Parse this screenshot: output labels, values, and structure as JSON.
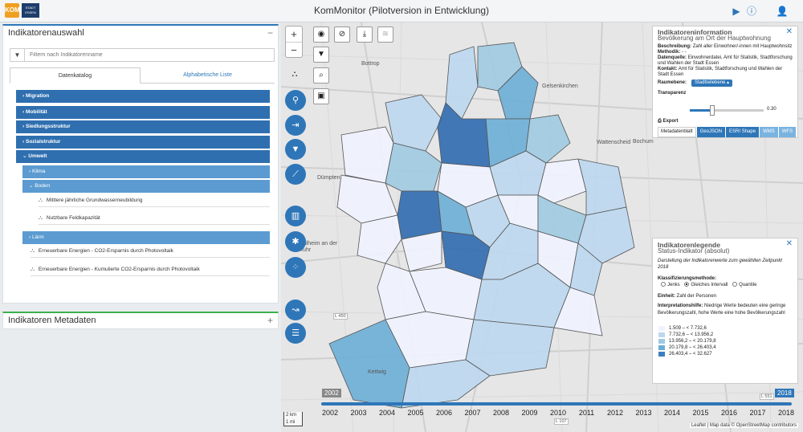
{
  "header": {
    "logo_left": "KOM",
    "logo_right": "STADT ESSEN",
    "title": "KomMonitor (Pilotversion in Entwicklung)",
    "icons": [
      "play-icon",
      "info-icon",
      "user-settings-icon"
    ]
  },
  "sidebar": {
    "title": "Indikatorenauswahl",
    "collapse_symbol": "−",
    "filter_placeholder": "Filtern nach Indikatorenname",
    "tabs": [
      {
        "label": "Datenkatalog"
      },
      {
        "label": "Alphabetische Liste"
      }
    ],
    "categories": [
      "Migration",
      "Mobilität",
      "Siedlungsstruktur",
      "Sozialstruktur",
      "Umwelt"
    ],
    "subcategories": [
      "Klima",
      "Boden",
      "Lärm"
    ],
    "indicators_boden": [
      "Mittlere jährliche Grundwasserneubildung",
      "Nutzbare Feldkapazität"
    ],
    "indicators_other": [
      "Erneuerbare Energien - CO2-Ersparnis durch Photovoltaik",
      "Erneuerbare Energien - Kumulierte CO2-Ersparnis durch Photovoltaik"
    ],
    "metadata_title": "Indikatoren Metadaten",
    "expand_symbol": "+"
  },
  "map": {
    "labels": [
      "Bottrop",
      "Gelsenkirchen",
      "Wattenscheid",
      "Bochum",
      "Dümpten",
      "Mülheim an der Ruhr",
      "Kettwig"
    ],
    "zoom_in": "+",
    "zoom_out": "−",
    "scale_top": "2 km",
    "scale_bottom": "1 mi",
    "road_labels": [
      "L 450",
      "L 551",
      "L 107"
    ]
  },
  "info": {
    "title": "Indikatoreninformation",
    "subtitle": "Bevölkerung am Ort der Hauptwohnung",
    "beschreibung_label": "Beschreibung:",
    "beschreibung": "Zahl aller Einwohner/-innen mit Hauptwohnsitz",
    "methodik_label": "Methodik:",
    "methodik": "- -",
    "datenquelle_label": "Datenquelle:",
    "datenquelle": "Einwohnerdatei, Amt für Statistik, Stadtforschung und Wahlen der Stadt Essen",
    "kontakt_label": "Kontakt:",
    "kontakt": "Amt für Statistik, Stadtforschung und Wahlen der Stadt Essen",
    "raumebene_label": "Raumebene:",
    "raumebene": "Stadtteilebene",
    "transparenz_label": "Transparenz",
    "transparenz_value": "0.30",
    "transparenz_fraction": 0.3,
    "export_label": "Export",
    "formats": [
      "Metadatenblatt",
      "GeoJSON",
      "ESRI Shape",
      "WMS",
      "WFS"
    ]
  },
  "legend": {
    "title": "Indikatorenlegende",
    "subtitle": "Status-Indikator (absolut)",
    "description": "Darstellung der Indikatorenwerte zum gewählten Zeitpunkt 2018",
    "method_label": "Klassifizierungsmethode:",
    "methods": [
      "Jenks",
      "Gleiches Intervall",
      "Quantile"
    ],
    "einheit_label": "Einheit:",
    "einheit": "Zahl der Personen",
    "interp_label": "Interpretationshilfe:",
    "interp": "Niedrige Werte bedeuten eine geringe Bevölkerungszahl, hohe Werte eine hohe Bevölkerungszahl",
    "classes": [
      {
        "label": "1.509 – < 7.732,6",
        "color": "#eff3ff"
      },
      {
        "label": "7.732,6 – < 13.956,2",
        "color": "#bdd7ee"
      },
      {
        "label": "13.956,2 – < 20.179,8",
        "color": "#9ecae1"
      },
      {
        "label": "20.179,8 – < 26.403,4",
        "color": "#6baed6"
      },
      {
        "label": "26.403,4 – < 32.627",
        "color": "#3c7fc0"
      }
    ]
  },
  "timeline": {
    "start_badge": "2002",
    "end_badge": "2018",
    "years": [
      "2002",
      "2003",
      "2004",
      "2005",
      "2006",
      "2007",
      "2008",
      "2009",
      "2010",
      "2011",
      "2012",
      "2013",
      "2014",
      "2015",
      "2016",
      "2017",
      "2018"
    ]
  },
  "attribution": "Leaflet | Map data © OpenStreetMap contributors"
}
